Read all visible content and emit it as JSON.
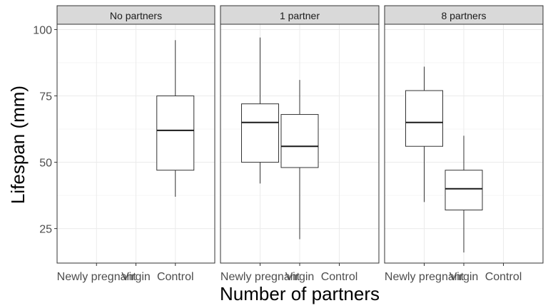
{
  "chart_data": {
    "type": "boxplot",
    "xlabel": "Number of partners",
    "ylabel": "Lifespan (mm)",
    "ylim": [
      12,
      102
    ],
    "yticks": [
      25,
      50,
      75,
      100
    ],
    "categories": [
      "Newly pregnant",
      "Virgin",
      "Control"
    ],
    "grid": true,
    "facets": [
      {
        "label": "No partners",
        "boxes": [
          {
            "category": "Control",
            "whisker_low": 37,
            "q1": 47,
            "median": 62,
            "q3": 75,
            "whisker_high": 96
          }
        ]
      },
      {
        "label": "1 partner",
        "boxes": [
          {
            "category": "Newly pregnant",
            "whisker_low": 42,
            "q1": 50,
            "median": 65,
            "q3": 72,
            "whisker_high": 97
          },
          {
            "category": "Virgin",
            "whisker_low": 21,
            "q1": 48,
            "median": 56,
            "q3": 68,
            "whisker_high": 81
          }
        ]
      },
      {
        "label": "8 partners",
        "boxes": [
          {
            "category": "Newly pregnant",
            "whisker_low": 35,
            "q1": 56,
            "median": 65,
            "q3": 77,
            "whisker_high": 86
          },
          {
            "category": "Virgin",
            "whisker_low": 16,
            "q1": 32,
            "median": 40,
            "q3": 47,
            "whisker_high": 60
          }
        ]
      }
    ]
  }
}
